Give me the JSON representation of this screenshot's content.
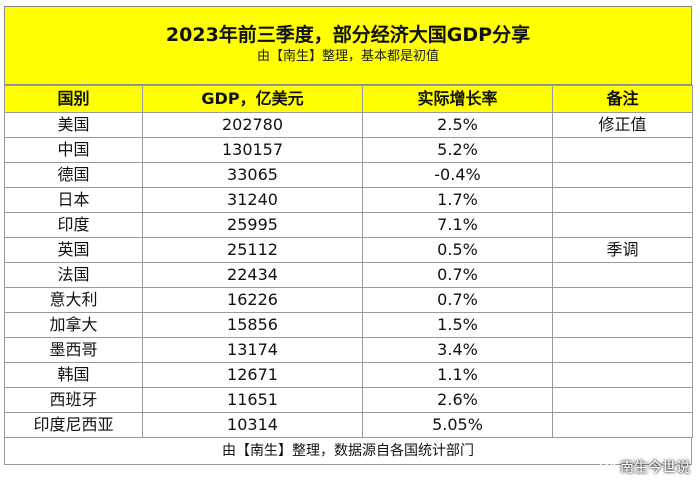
{
  "header": {
    "title": "2023年前三季度，部分经济大国GDP分享",
    "subtitle": "由【南生】整理，基本都是初值"
  },
  "table": {
    "columns": [
      "国别",
      "GDP，亿美元",
      "实际增长率",
      "备注"
    ],
    "rows": [
      {
        "country": "美国",
        "gdp": "202780",
        "growth": "2.5%",
        "note": "修正值"
      },
      {
        "country": "中国",
        "gdp": "130157",
        "growth": "5.2%",
        "note": ""
      },
      {
        "country": "德国",
        "gdp": "33065",
        "growth": "-0.4%",
        "note": ""
      },
      {
        "country": "日本",
        "gdp": "31240",
        "growth": "1.7%",
        "note": ""
      },
      {
        "country": "印度",
        "gdp": "25995",
        "growth": "7.1%",
        "note": ""
      },
      {
        "country": "英国",
        "gdp": "25112",
        "growth": "0.5%",
        "note": "季调"
      },
      {
        "country": "法国",
        "gdp": "22434",
        "growth": "0.7%",
        "note": ""
      },
      {
        "country": "意大利",
        "gdp": "16226",
        "growth": "0.7%",
        "note": ""
      },
      {
        "country": "加拿大",
        "gdp": "15856",
        "growth": "1.5%",
        "note": ""
      },
      {
        "country": "墨西哥",
        "gdp": "13174",
        "growth": "3.4%",
        "note": ""
      },
      {
        "country": "韩国",
        "gdp": "12671",
        "growth": "1.1%",
        "note": ""
      },
      {
        "country": "西班牙",
        "gdp": "11651",
        "growth": "2.6%",
        "note": ""
      },
      {
        "country": "印度尼西亚",
        "gdp": "10314",
        "growth": "5.05%",
        "note": ""
      }
    ]
  },
  "footer": {
    "text": "由【南生】整理，数据源自各国统计部门"
  },
  "watermark": {
    "icon": "wechat-icon",
    "text": "南生今世说"
  },
  "colors": {
    "header_bg": "#ffff00",
    "border": "#9a9a9a"
  }
}
